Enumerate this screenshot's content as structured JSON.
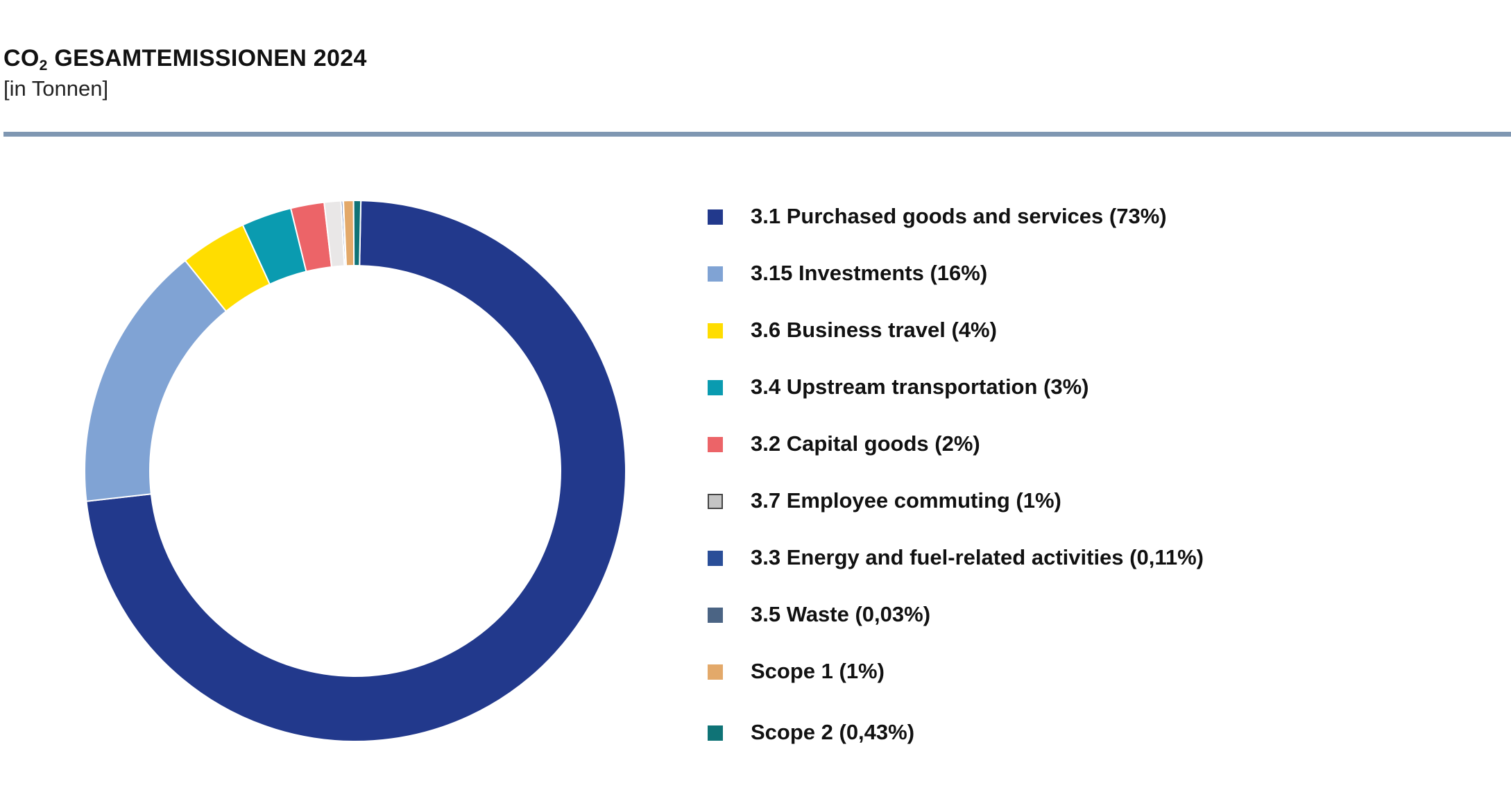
{
  "chart_data": {
    "type": "pie",
    "variant": "donut",
    "title_main": "CO",
    "title_sub": "2",
    "title_rest": " GESAMTEMISSIONEN 2024",
    "subtitle": "[in Tonnen]",
    "legend_position": "right",
    "slices": [
      {
        "label": "3.1 Purchased goods and services (73%)",
        "value": 73,
        "color": "#22398c"
      },
      {
        "label": "3.15 Investments (16%)",
        "value": 16,
        "color": "#80a3d4"
      },
      {
        "label": "3.6 Business travel (4%)",
        "value": 4,
        "color": "#ffdd00"
      },
      {
        "label": "3.4 Upstream transportation (3%)",
        "value": 3,
        "color": "#0a9bb0"
      },
      {
        "label": "3.2 Capital goods (2%)",
        "value": 2,
        "color": "#ec6468"
      },
      {
        "label": "3.7 Employee commuting (1%)",
        "value": 1,
        "color": "#e9e7e7"
      },
      {
        "label": "3.3 Energy and fuel-related activities (0,11%)",
        "value": 0.11,
        "color": "#2a4e98"
      },
      {
        "label": "3.5 Waste (0,03%)",
        "value": 0.03,
        "color": "#4b6484"
      },
      {
        "label": "Scope 1 (1%)",
        "value": 0.6,
        "color": "#e3a96a"
      },
      {
        "label": "Scope 2 (0,43%)",
        "value": 0.43,
        "color": "#0f7376"
      }
    ]
  }
}
